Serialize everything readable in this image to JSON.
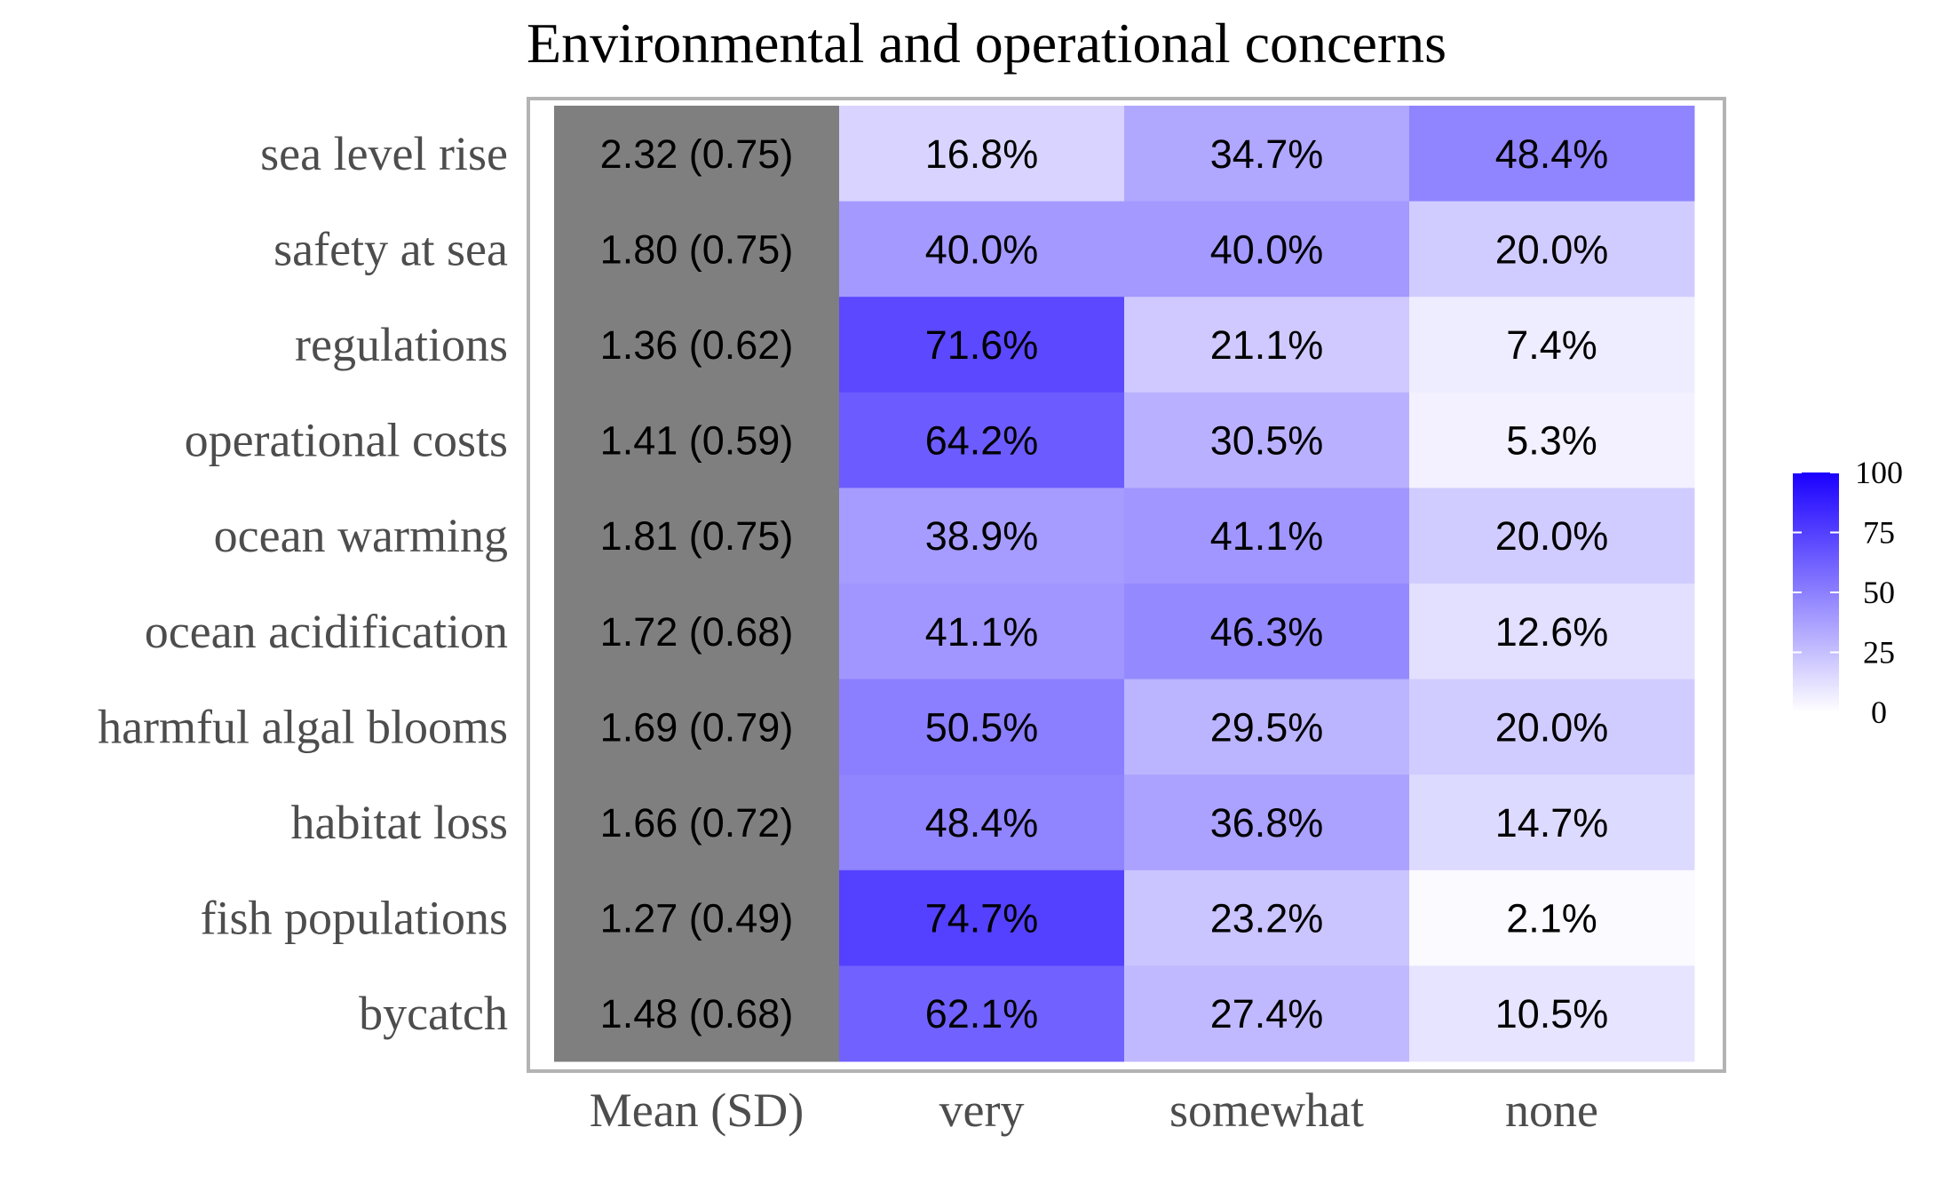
{
  "chart_data": {
    "type": "heatmap",
    "title": "Environmental and operational concerns",
    "rows": [
      "sea level rise",
      "safety at sea",
      "regulations",
      "operational costs",
      "ocean warming",
      "ocean acidification",
      "harmful algal blooms",
      "habitat loss",
      "fish populations",
      "bycatch"
    ],
    "columns": [
      "Mean (SD)",
      "very",
      "somewhat",
      "none"
    ],
    "mean_sd": [
      "2.32 (0.75)",
      "1.80 (0.75)",
      "1.36 (0.62)",
      "1.41 (0.59)",
      "1.81 (0.75)",
      "1.72 (0.68)",
      "1.69 (0.79)",
      "1.66 (0.72)",
      "1.27 (0.49)",
      "1.48 (0.68)"
    ],
    "percent_values": [
      [
        16.8,
        34.7,
        48.4
      ],
      [
        40.0,
        40.0,
        20.0
      ],
      [
        71.6,
        21.1,
        7.4
      ],
      [
        64.2,
        30.5,
        5.3
      ],
      [
        38.9,
        41.1,
        20.0
      ],
      [
        41.1,
        46.3,
        12.6
      ],
      [
        50.5,
        29.5,
        20.0
      ],
      [
        48.4,
        36.8,
        14.7
      ],
      [
        74.7,
        23.2,
        2.1
      ],
      [
        62.1,
        27.4,
        10.5
      ]
    ],
    "percent_labels": [
      [
        "16.8%",
        "34.7%",
        "48.4%"
      ],
      [
        "40.0%",
        "40.0%",
        "20.0%"
      ],
      [
        "71.6%",
        "21.1%",
        "7.4%"
      ],
      [
        "64.2%",
        "30.5%",
        "5.3%"
      ],
      [
        "38.9%",
        "41.1%",
        "20.0%"
      ],
      [
        "41.1%",
        "46.3%",
        "12.6%"
      ],
      [
        "50.5%",
        "29.5%",
        "20.0%"
      ],
      [
        "48.4%",
        "36.8%",
        "14.7%"
      ],
      [
        "74.7%",
        "23.2%",
        "2.1%"
      ],
      [
        "62.1%",
        "27.4%",
        "10.5%"
      ]
    ],
    "color_scale": {
      "low": "#ffffff",
      "high": "#1a00ff",
      "range": [
        0,
        100
      ],
      "ticks": [
        0,
        25,
        50,
        75,
        100
      ]
    },
    "mean_column_color": "#7f7f7f",
    "legend_position": "right",
    "grid": false
  }
}
